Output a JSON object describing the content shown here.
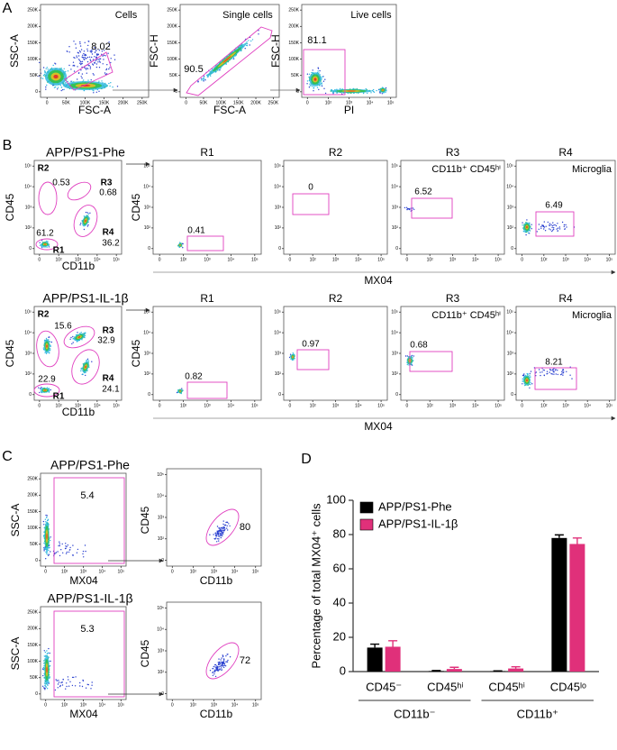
{
  "panel_labels": [
    "A",
    "B",
    "C",
    "D"
  ],
  "linear_ticks": [
    "0",
    "50K",
    "100K",
    "150K",
    "200K",
    "250K"
  ],
  "log_ticks": [
    "0",
    "10²",
    "10³",
    "10⁴",
    "10⁵"
  ],
  "panel_a": {
    "plots": [
      {
        "title": "Cells",
        "x_label": "FSC-A",
        "y_label": "SSC-A",
        "gate": 8.02
      },
      {
        "title": "Single cells",
        "x_label": "FSC-A",
        "y_label": "FSC-H",
        "gate": 90.5
      },
      {
        "title": "Live cells",
        "x_label": "PI",
        "y_label": "FSC-H",
        "gate": 81.1
      }
    ]
  },
  "panel_b": {
    "rows": [
      {
        "title": "APP/PS1-Phe",
        "overview": {
          "x_label": "CD11b",
          "y_label": "CD45",
          "gates": [
            {
              "name": "R1",
              "value": 61.2
            },
            {
              "name": "R2",
              "value": 0.53
            },
            {
              "name": "R3",
              "value": 0.68
            },
            {
              "name": "R4",
              "value": 36.2
            }
          ]
        },
        "x_label": "MX04",
        "y_label": "CD45",
        "columns": [
          {
            "title": "R1",
            "gate": 0.41
          },
          {
            "title": "R2",
            "gate": 0
          },
          {
            "title": "R3",
            "subtitle": "CD11b⁺ CD45ʰⁱ",
            "gate": 6.52
          },
          {
            "title": "R4",
            "subtitle": "Microglia",
            "gate": 6.49
          }
        ]
      },
      {
        "title": "APP/PS1-IL-1β",
        "overview": {
          "x_label": "CD11b",
          "y_label": "CD45",
          "gates": [
            {
              "name": "R1",
              "value": 22.9
            },
            {
              "name": "R2",
              "value": 15.6
            },
            {
              "name": "R3",
              "value": 32.9
            },
            {
              "name": "R4",
              "value": 24.1
            }
          ]
        },
        "x_label": "MX04",
        "y_label": "CD45",
        "columns": [
          {
            "title": "R1",
            "gate": 0.82
          },
          {
            "title": "R2",
            "gate": 0.97
          },
          {
            "title": "R3",
            "subtitle": "CD11b⁺ CD45ʰⁱ",
            "gate": 0.68
          },
          {
            "title": "R4",
            "subtitle": "Microglia",
            "gate": 8.21
          }
        ]
      }
    ]
  },
  "panel_c": {
    "rows": [
      {
        "title": "APP/PS1-Phe",
        "gating": {
          "x_label": "MX04",
          "y_label": "SSC-A",
          "gate": 5.4
        },
        "phenotype": {
          "x_label": "CD11b",
          "y_label": "CD45",
          "gate": 80
        }
      },
      {
        "title": "APP/PS1-IL-1β",
        "gating": {
          "x_label": "MX04",
          "y_label": "SSC-A",
          "gate": 5.3
        },
        "phenotype": {
          "x_label": "CD11b",
          "y_label": "CD45",
          "gate": 72
        }
      }
    ]
  },
  "chart_data": {
    "type": "bar",
    "y_label": "Percentage of total MX04⁺ cells",
    "categories": [
      "CD45⁻",
      "CD45ʰⁱ",
      "CD45ʰⁱ",
      "CD45ˡᵒ"
    ],
    "groups": [
      "CD11b⁻",
      "CD11b⁺"
    ],
    "series": [
      {
        "name": "APP/PS1-Phe",
        "color": "#000000",
        "values": [
          14,
          0.3,
          0.2,
          78
        ],
        "errors": [
          2,
          0.3,
          0.2,
          1.8
        ]
      },
      {
        "name": "APP/PS1-IL-1β",
        "color": "#e0307a",
        "values": [
          14.5,
          1.5,
          1.8,
          74.5
        ],
        "errors": [
          3.5,
          1,
          1,
          3.5
        ]
      }
    ],
    "ylim": [
      0,
      100
    ],
    "yticks": [
      0,
      20,
      40,
      60,
      80,
      100
    ],
    "legend": "upper left"
  }
}
